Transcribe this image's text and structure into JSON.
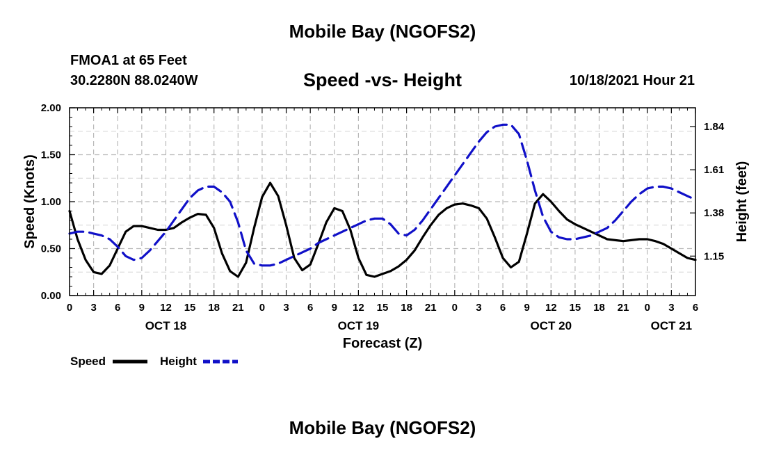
{
  "header": {
    "title": "Mobile Bay (NGOFS2)",
    "station": "FMOA1 at 65 Feet",
    "coords": "30.2280N  88.0240W",
    "subtitle": "Speed -vs- Height",
    "datetime": "10/18/2021 Hour 21"
  },
  "footer": {
    "title": "Mobile Bay (NGOFS2)"
  },
  "colors": {
    "speed": "#000000",
    "height": "#1010c8",
    "grid": "#b8b8b8"
  },
  "chart_data": {
    "type": "line",
    "title": "Speed -vs- Height",
    "xlabel": "Forecast (Z)",
    "ylabel": "Speed (Knots)",
    "ylabel_right": "Height (feet)",
    "xlim": [
      0,
      78
    ],
    "ylim": [
      0,
      2.0
    ],
    "ylim_right": [
      0.94,
      1.94
    ],
    "grid": true,
    "legend_position": "bottom-left",
    "x_tick_labels": [
      "0",
      "3",
      "6",
      "9",
      "12",
      "15",
      "18",
      "21",
      "0",
      "3",
      "6",
      "9",
      "12",
      "15",
      "18",
      "21",
      "0",
      "3",
      "6",
      "9",
      "12",
      "15",
      "18",
      "21",
      "0",
      "3",
      "6"
    ],
    "y_tick_labels": [
      "0.00",
      "0.50",
      "1.00",
      "1.50",
      "2.00"
    ],
    "y_right_tick_labels": [
      "1.15",
      "1.38",
      "1.61",
      "1.84"
    ],
    "y_right_tick_values": [
      1.15,
      1.38,
      1.61,
      1.84
    ],
    "day_labels": [
      {
        "text": "OCT 18",
        "x": 12
      },
      {
        "text": "OCT 19",
        "x": 36
      },
      {
        "text": "OCT 20",
        "x": 60
      },
      {
        "text": "OCT 21",
        "x": 75
      }
    ],
    "series": [
      {
        "name": "Speed",
        "axis": "left",
        "style": "solid",
        "x": [
          0,
          1,
          2,
          3,
          4,
          5,
          6,
          7,
          8,
          9,
          10,
          11,
          12,
          13,
          14,
          15,
          16,
          17,
          18,
          19,
          20,
          21,
          22,
          23,
          24,
          25,
          26,
          27,
          28,
          29,
          30,
          31,
          32,
          33,
          34,
          35,
          36,
          37,
          38,
          39,
          40,
          41,
          42,
          43,
          44,
          45,
          46,
          47,
          48,
          49,
          50,
          51,
          52,
          53,
          54,
          55,
          56,
          57,
          58,
          59,
          60,
          61,
          62,
          63,
          64,
          65,
          66,
          67,
          68,
          69,
          70,
          71,
          72,
          73,
          74,
          75,
          76,
          77,
          78
        ],
        "values": [
          0.9,
          0.6,
          0.38,
          0.25,
          0.23,
          0.32,
          0.5,
          0.68,
          0.74,
          0.74,
          0.72,
          0.7,
          0.7,
          0.72,
          0.78,
          0.83,
          0.87,
          0.86,
          0.72,
          0.45,
          0.26,
          0.2,
          0.35,
          0.72,
          1.05,
          1.2,
          1.06,
          0.75,
          0.4,
          0.27,
          0.33,
          0.55,
          0.78,
          0.93,
          0.9,
          0.7,
          0.4,
          0.22,
          0.2,
          0.23,
          0.26,
          0.31,
          0.38,
          0.48,
          0.62,
          0.75,
          0.86,
          0.93,
          0.97,
          0.98,
          0.96,
          0.93,
          0.82,
          0.62,
          0.4,
          0.3,
          0.36,
          0.66,
          0.98,
          1.08,
          1.0,
          0.9,
          0.81,
          0.76,
          0.72,
          0.68,
          0.64,
          0.6,
          0.59,
          0.58,
          0.59,
          0.6,
          0.6,
          0.58,
          0.55,
          0.5,
          0.45,
          0.4,
          0.38
        ]
      },
      {
        "name": "Height",
        "axis": "right",
        "style": "dashed",
        "x": [
          0,
          1,
          2,
          3,
          4,
          5,
          6,
          7,
          8,
          9,
          10,
          11,
          12,
          13,
          14,
          15,
          16,
          17,
          18,
          19,
          20,
          21,
          22,
          23,
          24,
          25,
          26,
          27,
          28,
          29,
          30,
          31,
          32,
          33,
          34,
          35,
          36,
          37,
          38,
          39,
          40,
          41,
          42,
          43,
          44,
          45,
          46,
          47,
          48,
          49,
          50,
          51,
          52,
          53,
          54,
          55,
          56,
          57,
          58,
          59,
          60,
          61,
          62,
          63,
          64,
          65,
          66,
          67,
          68,
          69,
          70,
          71,
          72,
          73,
          74,
          75,
          76,
          77,
          78
        ],
        "values": [
          1.27,
          1.28,
          1.28,
          1.27,
          1.26,
          1.24,
          1.2,
          1.15,
          1.13,
          1.14,
          1.18,
          1.23,
          1.28,
          1.34,
          1.4,
          1.46,
          1.5,
          1.52,
          1.52,
          1.49,
          1.44,
          1.33,
          1.18,
          1.11,
          1.1,
          1.1,
          1.11,
          1.13,
          1.15,
          1.17,
          1.19,
          1.22,
          1.24,
          1.26,
          1.28,
          1.3,
          1.32,
          1.34,
          1.35,
          1.35,
          1.32,
          1.27,
          1.26,
          1.29,
          1.34,
          1.4,
          1.46,
          1.52,
          1.58,
          1.64,
          1.7,
          1.76,
          1.81,
          1.84,
          1.85,
          1.85,
          1.8,
          1.66,
          1.5,
          1.36,
          1.28,
          1.25,
          1.24,
          1.24,
          1.25,
          1.26,
          1.28,
          1.3,
          1.34,
          1.39,
          1.44,
          1.48,
          1.51,
          1.52,
          1.52,
          1.51,
          1.49,
          1.47,
          1.45
        ]
      }
    ]
  }
}
